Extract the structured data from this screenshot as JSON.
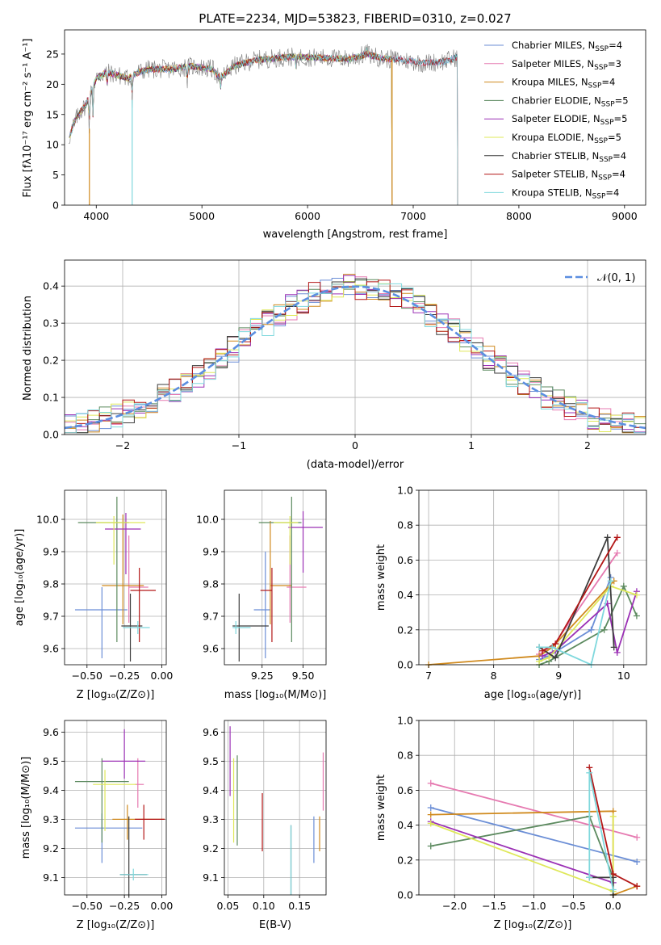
{
  "chart_data": [
    {
      "type": "line",
      "title": "PLATE=2234, MJD=53823, FIBERID=0310, z=0.027",
      "xlabel": "wavelength [Angstrom, rest frame]",
      "ylabel": "Flux [fλ10⁻¹⁷ erg cm⁻² s⁻¹ A⁻¹]",
      "xlim": [
        3700,
        9200
      ],
      "ylim": [
        0,
        29
      ],
      "xticks": [
        "4000",
        "5000",
        "6000",
        "7000",
        "8000",
        "9000"
      ],
      "yticks": [
        "0",
        "5",
        "10",
        "15",
        "20",
        "25"
      ],
      "legend_position": "upper right",
      "data_spectrum_color": "#7f7f7f",
      "spectrum_profile": {
        "x": [
          3740,
          3800,
          3850,
          3900,
          3950,
          4000,
          4100,
          4200,
          4300,
          4400,
          4500,
          4700,
          4900,
          5100,
          5175,
          5300,
          5500,
          5800,
          6000,
          6200,
          6400,
          6563,
          6700,
          6900,
          7100,
          7300,
          7420
        ],
        "y": [
          11,
          14,
          15.5,
          16.5,
          18.5,
          21,
          22,
          21.5,
          21,
          22,
          22.5,
          22.5,
          23,
          22.5,
          21,
          23,
          24,
          24.5,
          24.5,
          24.3,
          24.2,
          25,
          24.3,
          24,
          23.5,
          23.8,
          24.5
        ]
      },
      "model_extent": {
        "max": [
          7420,
          7420,
          6800,
          6800,
          6800,
          6800,
          7420,
          7420,
          7420
        ]
      },
      "series": [
        {
          "name": "Chabrier MILES, N$_{SSP}$=4",
          "color": "#6b8ed6"
        },
        {
          "name": "Salpeter MILES, N$_{SSP}$=3",
          "color": "#e67ab1"
        },
        {
          "name": "Kroupa MILES, N$_{SSP}$=4",
          "color": "#d08a1e"
        },
        {
          "name": "Chabrier ELODIE, N$_{SSP}$=5",
          "color": "#5c8a5f"
        },
        {
          "name": "Salpeter ELODIE, N$_{SSP}$=5",
          "color": "#9b30b5"
        },
        {
          "name": "Kroupa ELODIE, N$_{SSP}$=5",
          "color": "#dfe85a"
        },
        {
          "name": "Chabrier STELIB, N$_{SSP}$=4",
          "color": "#3d3d3d"
        },
        {
          "name": "Salpeter STELIB, N$_{SSP}$=4",
          "color": "#b31717"
        },
        {
          "name": "Kroupa STELIB, N$_{SSP}$=4",
          "color": "#7fd8dd"
        }
      ]
    },
    {
      "type": "step",
      "xlabel": "(data-model)/error",
      "ylabel": "Normed distribution",
      "xlim": [
        -2.5,
        2.5
      ],
      "ylim": [
        0,
        0.47
      ],
      "xticks": [
        "−2",
        "−1",
        "0",
        "1",
        "2"
      ],
      "yticks": [
        "0.0",
        "0.1",
        "0.2",
        "0.3",
        "0.4"
      ],
      "grid": true,
      "legend": "𝒩(0, 1)",
      "normal_curve_color": "#5b8ee0",
      "bins": [
        -2.5,
        2.5
      ],
      "bin_width": 0.1,
      "line_colors": [
        "#6b8ed6",
        "#e67ab1",
        "#d08a1e",
        "#5c8a5f",
        "#9b30b5",
        "#dfe85a",
        "#3d3d3d",
        "#b31717",
        "#7fd8dd"
      ]
    },
    {
      "type": "scatter_errorbar",
      "xlabel": "Z [log₁₀(Z/Z⊙)]",
      "ylabel": "age  [log₁₀(age/yr)]",
      "xlim": [
        -0.65,
        0.03
      ],
      "ylim": [
        9.55,
        10.09
      ],
      "xticks": [
        "−0.50",
        "−0.25",
        "0.00"
      ],
      "yticks": [
        "9.6",
        "9.7",
        "9.8",
        "9.9",
        "10.0"
      ],
      "grid": true,
      "points": [
        {
          "color": "#6b8ed6",
          "x": -0.4,
          "xerr": [
            0.18,
            0.17
          ],
          "y": 9.72,
          "yerr": [
            0.15,
            0.07
          ]
        },
        {
          "color": "#e67ab1",
          "x": -0.22,
          "xerr": [
            0.0,
            0.13
          ],
          "y": 9.79,
          "yerr": [
            0.11,
            0.16
          ]
        },
        {
          "color": "#d08a1e",
          "x": -0.26,
          "xerr": [
            0.14,
            0.14
          ],
          "y": 9.795,
          "yerr": [
            0.12,
            0.22
          ]
        },
        {
          "color": "#5c8a5f",
          "x": -0.3,
          "xerr": [
            0.26,
            0.08
          ],
          "y": 9.99,
          "yerr": [
            0.37,
            0.08
          ]
        },
        {
          "color": "#9b30b5",
          "x": -0.24,
          "xerr": [
            0.14,
            0.1
          ],
          "y": 9.97,
          "yerr": [
            0.14,
            0.05
          ]
        },
        {
          "color": "#dfe85a",
          "x": -0.32,
          "xerr": [
            0.12,
            0.21
          ],
          "y": 9.99,
          "yerr": [
            0.13,
            0.02
          ]
        },
        {
          "color": "#3d3d3d",
          "x": -0.21,
          "xerr": [
            0.06,
            0.08
          ],
          "y": 9.67,
          "yerr": [
            0.11,
            0.1
          ]
        },
        {
          "color": "#b31717",
          "x": -0.15,
          "xerr": [
            0.06,
            0.11
          ],
          "y": 9.78,
          "yerr": [
            0.16,
            0.07
          ]
        },
        {
          "color": "#7fd8dd",
          "x": -0.16,
          "xerr": [
            0.1,
            0.08
          ],
          "y": 9.665,
          "yerr": [
            0.02,
            0.02
          ]
        }
      ]
    },
    {
      "type": "scatter_errorbar",
      "xlabel": "mass [log₁₀(M/M⊙)]",
      "xlim": [
        9.02,
        9.64
      ],
      "ylim": [
        9.55,
        10.09
      ],
      "xticks": [
        "9.25",
        "9.50"
      ],
      "yticks": [
        "9.6",
        "9.7",
        "9.8",
        "9.9",
        "10.0"
      ],
      "grid": true,
      "points": [
        {
          "color": "#6b8ed6",
          "x": 9.27,
          "xerr": [
            0.07,
            0.03
          ],
          "y": 9.72,
          "yerr": [
            0.15,
            0.18
          ]
        },
        {
          "color": "#e67ab1",
          "x": 9.42,
          "xerr": [
            0.02,
            0.1
          ],
          "y": 9.79,
          "yerr": [
            0.11,
            0.16
          ]
        },
        {
          "color": "#d08a1e",
          "x": 9.3,
          "xerr": [
            0.0,
            0.13
          ],
          "y": 9.795,
          "yerr": [
            0.12,
            0.2
          ]
        },
        {
          "color": "#5c8a5f",
          "x": 9.43,
          "xerr": [
            0.2,
            0.06
          ],
          "y": 9.99,
          "yerr": [
            0.37,
            0.08
          ]
        },
        {
          "color": "#9b30b5",
          "x": 9.5,
          "xerr": [
            0.09,
            0.12
          ],
          "y": 9.975,
          "yerr": [
            0.14,
            0.05
          ]
        },
        {
          "color": "#dfe85a",
          "x": 9.42,
          "xerr": [
            0.1,
            0.05
          ],
          "y": 9.99,
          "yerr": [
            0.13,
            0.02
          ]
        },
        {
          "color": "#3d3d3d",
          "x": 9.11,
          "xerr": [
            0.04,
            0.18
          ],
          "y": 9.67,
          "yerr": [
            0.11,
            0.1
          ]
        },
        {
          "color": "#b31717",
          "x": 9.31,
          "xerr": [
            0.07,
            0.0
          ],
          "y": 9.78,
          "yerr": [
            0.16,
            0.07
          ]
        },
        {
          "color": "#7fd8dd",
          "x": 9.09,
          "xerr": [
            0.02,
            0.09
          ],
          "y": 9.665,
          "yerr": [
            0.02,
            0.02
          ]
        }
      ]
    },
    {
      "type": "line",
      "xlabel": "age  [log₁₀(age/yr)]",
      "ylabel": "mass weight",
      "xlim": [
        6.85,
        10.35
      ],
      "ylim": [
        0,
        1.0
      ],
      "xticks": [
        "7",
        "8",
        "9",
        "10"
      ],
      "yticks": [
        "0.0",
        "0.2",
        "0.4",
        "0.6",
        "0.8",
        "1.0"
      ],
      "grid": true,
      "series": [
        {
          "color": "#6b8ed6",
          "x": [
            8.7,
            8.85,
            9.5,
            9.8
          ],
          "y": [
            0.03,
            0.05,
            0.2,
            0.5
          ]
        },
        {
          "color": "#e67ab1",
          "x": [
            8.7,
            8.9,
            9.9
          ],
          "y": [
            0.06,
            0.1,
            0.64
          ]
        },
        {
          "color": "#d08a1e",
          "x": [
            7.0,
            8.7,
            8.9,
            9.85
          ],
          "y": [
            0.0,
            0.05,
            0.1,
            0.48
          ]
        },
        {
          "color": "#5c8a5f",
          "x": [
            8.7,
            8.85,
            9.7,
            10.0,
            10.2
          ],
          "y": [
            0.0,
            0.02,
            0.2,
            0.45,
            0.28
          ]
        },
        {
          "color": "#9b30b5",
          "x": [
            8.75,
            8.95,
            9.75,
            9.9,
            10.2
          ],
          "y": [
            0.05,
            0.08,
            0.35,
            0.07,
            0.42
          ]
        },
        {
          "color": "#dfe85a",
          "x": [
            8.7,
            8.85,
            9.8,
            10.2
          ],
          "y": [
            0.02,
            0.04,
            0.45,
            0.4
          ]
        },
        {
          "color": "#3d3d3d",
          "x": [
            8.7,
            8.95,
            9.75,
            9.85
          ],
          "y": [
            0.1,
            0.04,
            0.73,
            0.1
          ]
        },
        {
          "color": "#b31717",
          "x": [
            8.75,
            8.95,
            9.9
          ],
          "y": [
            0.08,
            0.12,
            0.73
          ]
        },
        {
          "color": "#7fd8dd",
          "x": [
            8.7,
            8.9,
            9.5,
            9.8
          ],
          "y": [
            0.1,
            0.1,
            0.0,
            0.48
          ]
        }
      ]
    },
    {
      "type": "scatter_errorbar",
      "xlabel": "Z [log₁₀(Z/Z⊙)]",
      "ylabel": "mass [log₁₀(M/M⊙)]",
      "xlim": [
        -0.65,
        0.03
      ],
      "ylim": [
        9.04,
        9.64
      ],
      "xticks": [
        "−0.50",
        "−0.25",
        "0.00"
      ],
      "yticks": [
        "9.1",
        "9.2",
        "9.3",
        "9.4",
        "9.5",
        "9.6"
      ],
      "grid": true,
      "points": [
        {
          "color": "#6b8ed6",
          "x": -0.4,
          "xerr": [
            0.18,
            0.27
          ],
          "y": 9.27,
          "yerr": [
            0.12,
            0.05
          ]
        },
        {
          "color": "#e67ab1",
          "x": -0.16,
          "xerr": [
            0.02,
            0.04
          ],
          "y": 9.42,
          "yerr": [
            0.08,
            0.09
          ]
        },
        {
          "color": "#d08a1e",
          "x": -0.23,
          "xerr": [
            0.1,
            0.25
          ],
          "y": 9.3,
          "yerr": [
            0.07,
            0.05
          ]
        },
        {
          "color": "#5c8a5f",
          "x": -0.4,
          "xerr": [
            0.18,
            0.18
          ],
          "y": 9.43,
          "yerr": [
            0.21,
            0.08
          ]
        },
        {
          "color": "#9b30b5",
          "x": -0.25,
          "xerr": [
            0.15,
            0.14
          ],
          "y": 9.5,
          "yerr": [
            0.06,
            0.11
          ]
        },
        {
          "color": "#dfe85a",
          "x": -0.38,
          "xerr": [
            0.08,
            0.21
          ],
          "y": 9.42,
          "yerr": [
            0.16,
            0.05
          ]
        },
        {
          "color": "#3d3d3d",
          "x": -0.22,
          "xerr": [
            0.06,
            0.12
          ],
          "y": 9.11,
          "yerr": [
            0.08,
            0.2
          ]
        },
        {
          "color": "#b31717",
          "x": -0.12,
          "xerr": [
            0.06,
            0.14
          ],
          "y": 9.3,
          "yerr": [
            0.07,
            0.05
          ]
        },
        {
          "color": "#7fd8dd",
          "x": -0.19,
          "xerr": [
            0.09,
            0.1
          ],
          "y": 9.11,
          "yerr": [
            0.02,
            0.02
          ]
        }
      ]
    },
    {
      "type": "scatter_errorbar",
      "xlabel": "E(B-V)",
      "xlim": [
        0.045,
        0.187
      ],
      "ylim": [
        9.04,
        9.64
      ],
      "xticks": [
        "0.05",
        "0.10",
        "0.15"
      ],
      "yticks": [
        "9.1",
        "9.2",
        "9.3",
        "9.4",
        "9.5",
        "9.6"
      ],
      "grid": true,
      "points": [
        {
          "color": "#6b8ed6",
          "x": 0.17,
          "y": 9.23,
          "yerr": [
            0.08,
            0.08
          ]
        },
        {
          "color": "#e67ab1",
          "x": 0.183,
          "y": 9.43,
          "yerr": [
            0.1,
            0.1
          ]
        },
        {
          "color": "#d08a1e",
          "x": 0.178,
          "y": 9.27,
          "yerr": [
            0.08,
            0.04
          ]
        },
        {
          "color": "#5c8a5f",
          "x": 0.063,
          "y": 9.36,
          "yerr": [
            0.15,
            0.16
          ]
        },
        {
          "color": "#9b30b5",
          "x": 0.053,
          "y": 9.5,
          "yerr": [
            0.12,
            0.12
          ]
        },
        {
          "color": "#dfe85a",
          "x": 0.058,
          "y": 9.36,
          "yerr": [
            0.14,
            0.15
          ]
        },
        {
          "color": "#3d3d3d",
          "x": 0.138,
          "y": 9.16,
          "yerr": [
            0.12,
            0.12
          ]
        },
        {
          "color": "#b31717",
          "x": 0.098,
          "y": 9.29,
          "yerr": [
            0.1,
            0.1
          ]
        },
        {
          "color": "#7fd8dd",
          "x": 0.138,
          "y": 9.16,
          "yerr": [
            0.12,
            0.12
          ]
        }
      ]
    },
    {
      "type": "line",
      "xlabel": "Z [log₁₀(Z/Z⊙)]",
      "ylabel": "mass weight",
      "xlim": [
        -2.45,
        0.42
      ],
      "ylim": [
        0,
        1.0
      ],
      "xticks": [
        "−2.0",
        "−1.5",
        "−1.0",
        "−0.5",
        "0.0"
      ],
      "yticks": [
        "0.0",
        "0.2",
        "0.4",
        "0.6",
        "0.8",
        "1.0"
      ],
      "grid": true,
      "series": [
        {
          "color": "#6b8ed6",
          "x": [
            -2.3,
            0.3
          ],
          "y": [
            0.5,
            0.19
          ]
        },
        {
          "color": "#e67ab1",
          "x": [
            -2.3,
            0.3
          ],
          "y": [
            0.64,
            0.33
          ]
        },
        {
          "color": "#d08a1e",
          "x": [
            -2.3,
            0.0,
            0.0,
            0.3
          ],
          "y": [
            0.46,
            0.48,
            0.0,
            0.05
          ]
        },
        {
          "color": "#5c8a5f",
          "x": [
            -2.3,
            -0.3,
            0.0
          ],
          "y": [
            0.28,
            0.45,
            0.1
          ]
        },
        {
          "color": "#9b30b5",
          "x": [
            -2.3,
            0.0
          ],
          "y": [
            0.42,
            0.07
          ]
        },
        {
          "color": "#dfe85a",
          "x": [
            -2.3,
            0.0,
            0.0
          ],
          "y": [
            0.41,
            0.02,
            0.45
          ]
        },
        {
          "color": "#3d3d3d",
          "x": [
            -0.3,
            0.0,
            0.0
          ],
          "y": [
            0.1,
            0.1,
            0.0
          ]
        },
        {
          "color": "#b31717",
          "x": [
            -0.3,
            0.0,
            0.3
          ],
          "y": [
            0.73,
            0.12,
            0.05
          ]
        },
        {
          "color": "#7fd8dd",
          "x": [
            -0.3,
            -0.3,
            0.0
          ],
          "y": [
            0.1,
            0.7,
            0.03
          ]
        }
      ]
    }
  ]
}
